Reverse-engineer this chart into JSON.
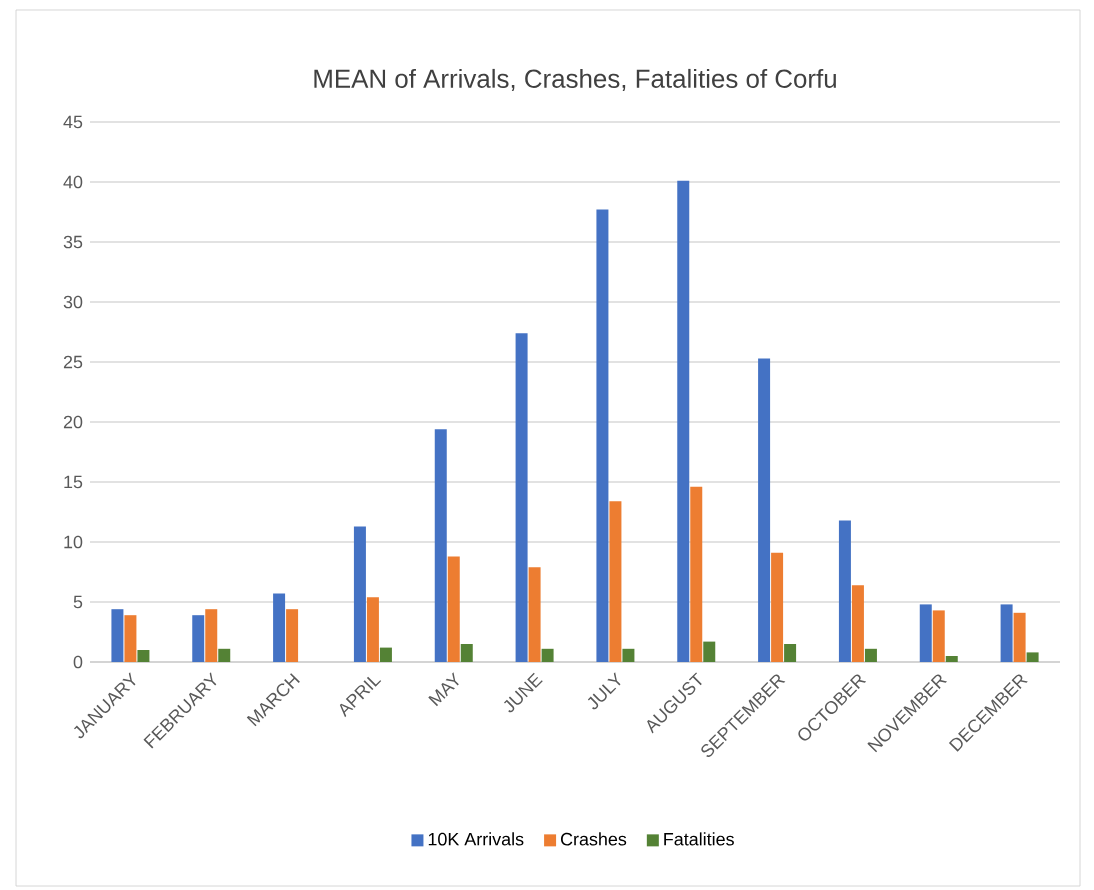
{
  "chart_data": {
    "type": "bar",
    "title": "MEAN of Arrivals, Crashes, Fatalities of Corfu",
    "categories": [
      "JANUARY",
      "FEBRUARY",
      "MARCH",
      "APRIL",
      "MAY",
      "JUNE",
      "JULY",
      "AUGUST",
      "SEPTEMBER",
      "OCTOBER",
      "NOVEMBER",
      "DECEMBER"
    ],
    "series": [
      {
        "name": "10K Arrivals",
        "color": "#4472c4",
        "values": [
          4.4,
          3.9,
          5.7,
          11.3,
          19.4,
          27.4,
          37.7,
          40.1,
          25.3,
          11.8,
          4.8,
          4.8
        ]
      },
      {
        "name": "Crashes",
        "color": "#ed7d31",
        "values": [
          3.9,
          4.4,
          4.4,
          5.4,
          8.8,
          7.9,
          13.4,
          14.6,
          9.1,
          6.4,
          4.3,
          4.1
        ]
      },
      {
        "name": "Fatalities",
        "color": "#548235",
        "values": [
          1.0,
          1.1,
          null,
          1.2,
          1.5,
          1.1,
          1.1,
          1.7,
          1.5,
          1.1,
          0.5,
          0.8
        ]
      }
    ],
    "ylim": [
      0,
      45
    ],
    "yticks": [
      0,
      5,
      10,
      15,
      20,
      25,
      30,
      35,
      40,
      45
    ],
    "grid": "y",
    "legend": "bottom"
  }
}
